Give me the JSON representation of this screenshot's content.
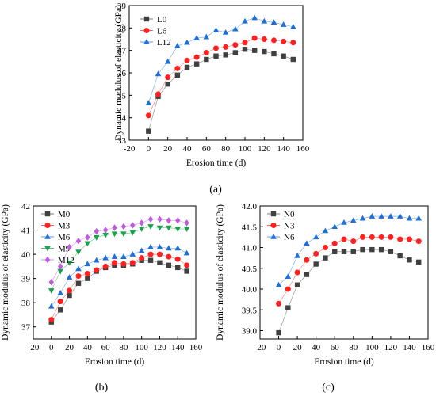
{
  "chart_data": [
    {
      "id": "a",
      "panel_label": "(a)",
      "type": "line",
      "xlabel": "Erosion time (d)",
      "ylabel": "Dynamic modulus of elasticity (GPa)",
      "xlim": [
        -20,
        160
      ],
      "ylim": [
        33,
        39
      ],
      "xticks": [
        -20,
        0,
        20,
        40,
        60,
        80,
        100,
        120,
        140,
        160
      ],
      "yticks": [
        33,
        34,
        35,
        36,
        37,
        38,
        39
      ],
      "ytick_decimals": 0,
      "legend": "top-left",
      "x": [
        0,
        10,
        20,
        30,
        40,
        50,
        60,
        70,
        80,
        90,
        100,
        110,
        120,
        130,
        140,
        150
      ],
      "series": [
        {
          "name": "L0",
          "marker": "square",
          "color": "#404040",
          "values": [
            33.4,
            34.95,
            35.5,
            35.9,
            36.25,
            36.4,
            36.6,
            36.75,
            36.8,
            36.9,
            37.05,
            37.0,
            36.95,
            36.85,
            36.75,
            36.6
          ]
        },
        {
          "name": "L6",
          "marker": "circle",
          "color": "#ff2020",
          "values": [
            34.1,
            35.05,
            35.8,
            36.2,
            36.55,
            36.7,
            36.9,
            37.1,
            37.15,
            37.25,
            37.35,
            37.55,
            37.5,
            37.45,
            37.4,
            37.35
          ]
        },
        {
          "name": "L12",
          "marker": "triangle",
          "color": "#1f6fd8",
          "values": [
            34.65,
            35.95,
            36.5,
            37.2,
            37.35,
            37.55,
            37.6,
            37.9,
            37.8,
            37.95,
            38.3,
            38.45,
            38.3,
            38.25,
            38.15,
            38.05
          ]
        }
      ]
    },
    {
      "id": "b",
      "panel_label": "(b)",
      "type": "line",
      "xlabel": "Erosion time (d)",
      "ylabel": "Dynamic modulus of elasticity (GPa)",
      "xlim": [
        -20,
        160
      ],
      "ylim": [
        36.5,
        42
      ],
      "xticks": [
        -20,
        0,
        20,
        40,
        60,
        80,
        100,
        120,
        140,
        160
      ],
      "yticks": [
        37,
        38,
        39,
        40,
        41,
        42
      ],
      "ytick_decimals": 0,
      "legend": "top-left",
      "x": [
        0,
        10,
        20,
        30,
        40,
        50,
        60,
        70,
        80,
        90,
        100,
        110,
        120,
        130,
        140,
        150
      ],
      "series": [
        {
          "name": "M0",
          "marker": "square",
          "color": "#404040",
          "values": [
            37.2,
            37.7,
            38.3,
            38.8,
            39.0,
            39.3,
            39.45,
            39.55,
            39.55,
            39.6,
            39.75,
            39.75,
            39.65,
            39.55,
            39.45,
            39.3
          ]
        },
        {
          "name": "M3",
          "marker": "circle",
          "color": "#ff2020",
          "values": [
            37.3,
            38.05,
            38.5,
            39.1,
            39.2,
            39.35,
            39.5,
            39.65,
            39.6,
            39.65,
            39.85,
            40.0,
            40.0,
            39.9,
            39.8,
            39.55
          ]
        },
        {
          "name": "M6",
          "marker": "triangle",
          "color": "#1f6fd8",
          "values": [
            37.85,
            38.4,
            39.05,
            39.4,
            39.6,
            39.75,
            39.85,
            39.9,
            39.9,
            40.0,
            40.15,
            40.3,
            40.3,
            40.25,
            40.25,
            40.05
          ]
        },
        {
          "name": "M9",
          "marker": "triangle-down",
          "color": "#18a34a",
          "values": [
            38.5,
            39.3,
            39.65,
            40.1,
            40.45,
            40.7,
            40.8,
            40.85,
            40.85,
            40.9,
            41.05,
            41.15,
            41.1,
            41.1,
            41.05,
            41.05
          ]
        },
        {
          "name": "M12",
          "marker": "diamond",
          "color": "#c05be0",
          "values": [
            38.85,
            39.5,
            40.3,
            40.55,
            40.7,
            40.95,
            41.0,
            41.1,
            41.15,
            41.2,
            41.3,
            41.45,
            41.45,
            41.4,
            41.4,
            41.3
          ]
        }
      ]
    },
    {
      "id": "c",
      "panel_label": "(c)",
      "type": "line",
      "xlabel": "Erosion time (d)",
      "ylabel": "Dynamic modulus of elasticity (GPa)",
      "xlim": [
        -20,
        160
      ],
      "ylim": [
        38.8,
        42.0
      ],
      "xticks": [
        -20,
        0,
        20,
        40,
        60,
        80,
        100,
        120,
        140,
        160
      ],
      "yticks": [
        39.0,
        39.5,
        40.0,
        40.5,
        41.0,
        41.5,
        42.0
      ],
      "ytick_decimals": 1,
      "legend": "top-left",
      "x": [
        0,
        10,
        20,
        30,
        40,
        50,
        60,
        70,
        80,
        90,
        100,
        110,
        120,
        130,
        140,
        150
      ],
      "series": [
        {
          "name": "N0",
          "marker": "square",
          "color": "#404040",
          "values": [
            38.95,
            39.55,
            40.1,
            40.35,
            40.6,
            40.75,
            40.9,
            40.9,
            40.9,
            40.95,
            40.95,
            40.95,
            40.9,
            40.8,
            40.7,
            40.65
          ]
        },
        {
          "name": "N3",
          "marker": "circle",
          "color": "#ff2020",
          "values": [
            39.65,
            40.0,
            40.4,
            40.7,
            40.85,
            41.0,
            41.1,
            41.2,
            41.15,
            41.25,
            41.25,
            41.25,
            41.25,
            41.2,
            41.2,
            41.15
          ]
        },
        {
          "name": "N6",
          "marker": "triangle",
          "color": "#1f6fd8",
          "values": [
            40.1,
            40.3,
            40.8,
            41.1,
            41.25,
            41.4,
            41.5,
            41.6,
            41.65,
            41.7,
            41.75,
            41.75,
            41.75,
            41.75,
            41.7,
            41.7
          ]
        }
      ]
    }
  ]
}
